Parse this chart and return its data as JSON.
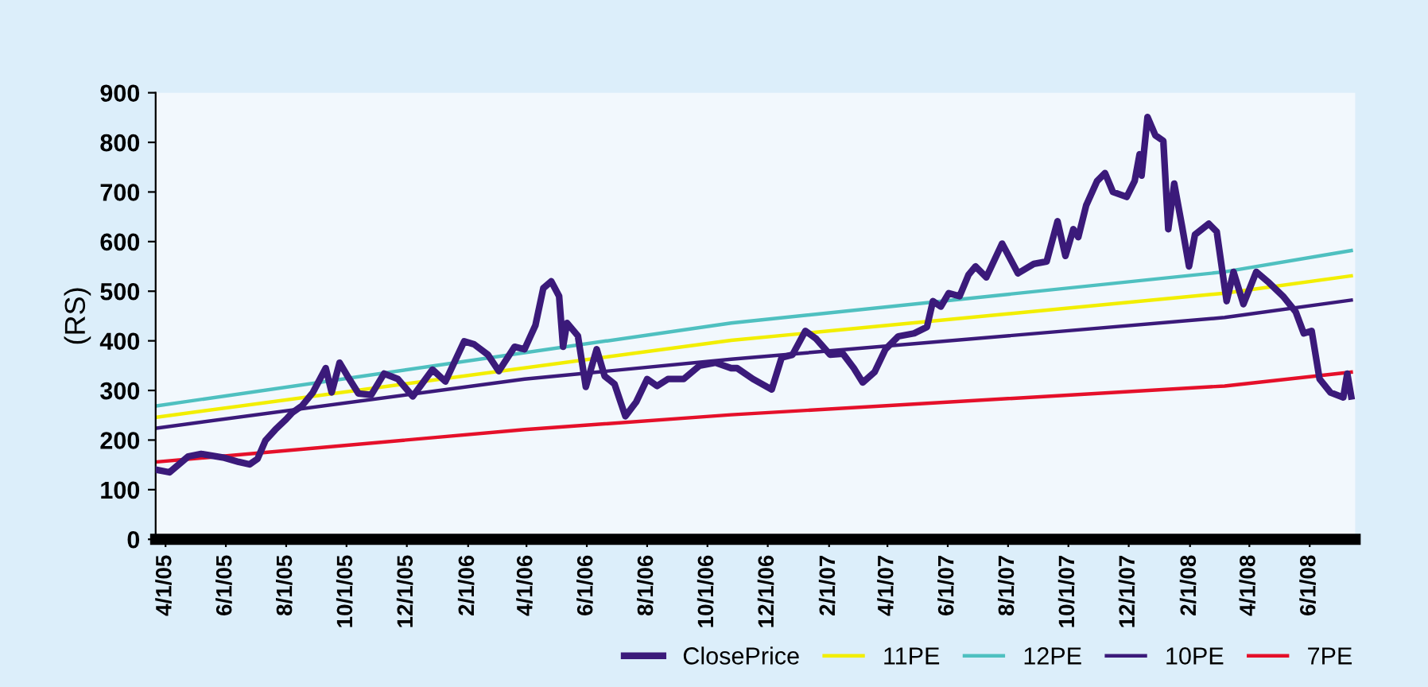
{
  "chart_data": {
    "type": "line",
    "ylabel": "(RS)",
    "xlim": [
      "2005-03-22",
      "2008-07-17"
    ],
    "ylim": [
      0,
      900
    ],
    "yticks": [
      0,
      100,
      200,
      300,
      400,
      500,
      600,
      700,
      800,
      900
    ],
    "xticks": [
      {
        "value": "2005-04-01",
        "label": "4/1/05"
      },
      {
        "value": "2005-06-01",
        "label": "6/1/05"
      },
      {
        "value": "2005-08-01",
        "label": "8/1/05"
      },
      {
        "value": "2005-10-01",
        "label": "10/1/05"
      },
      {
        "value": "2005-12-01",
        "label": "12/1/05"
      },
      {
        "value": "2006-02-01",
        "label": "2/1/06"
      },
      {
        "value": "2006-04-01",
        "label": "4/1/06"
      },
      {
        "value": "2006-06-01",
        "label": "6/1/06"
      },
      {
        "value": "2006-08-01",
        "label": "8/1/06"
      },
      {
        "value": "2006-10-01",
        "label": "10/1/06"
      },
      {
        "value": "2006-12-01",
        "label": "12/1/06"
      },
      {
        "value": "2007-02-01",
        "label": "2/1/07"
      },
      {
        "value": "2007-04-01",
        "label": "4/1/07"
      },
      {
        "value": "2007-06-01",
        "label": "6/1/07"
      },
      {
        "value": "2007-08-01",
        "label": "8/1/07"
      },
      {
        "value": "2007-10-01",
        "label": "10/1/07"
      },
      {
        "value": "2007-12-01",
        "label": "12/1/07"
      },
      {
        "value": "2008-02-01",
        "label": "2/1/08"
      },
      {
        "value": "2008-04-01",
        "label": "4/1/08"
      },
      {
        "value": "2008-06-01",
        "label": "6/1/08"
      }
    ],
    "grid": false,
    "legend": "bottom right",
    "marker": "none",
    "line_style": "solid",
    "series": [
      {
        "name": "ClosePrice",
        "color": "#3b1a7a",
        "x": [
          "2005-03-23",
          "2005-04-05",
          "2005-04-24",
          "2005-05-07",
          "2005-05-29",
          "2005-06-14",
          "2005-06-25",
          "2005-07-03",
          "2005-07-11",
          "2005-07-21",
          "2005-08-01",
          "2005-08-07",
          "2005-08-17",
          "2005-08-28",
          "2005-09-10",
          "2005-09-16",
          "2005-09-24",
          "2005-10-02",
          "2005-10-13",
          "2005-10-26",
          "2005-11-08",
          "2005-11-22",
          "2005-12-07",
          "2005-12-27",
          "2006-01-09",
          "2006-01-28",
          "2006-02-07",
          "2006-02-21",
          "2006-03-04",
          "2006-03-20",
          "2006-03-30",
          "2006-04-10",
          "2006-04-18",
          "2006-04-26",
          "2006-05-04",
          "2006-05-08",
          "2006-05-12",
          "2006-05-23",
          "2006-05-31",
          "2006-06-11",
          "2006-06-19",
          "2006-06-29",
          "2006-07-10",
          "2006-07-21",
          "2006-08-01",
          "2006-08-11",
          "2006-08-22",
          "2006-09-07",
          "2006-09-23",
          "2006-10-09",
          "2006-10-25",
          "2006-10-31",
          "2006-11-16",
          "2006-12-05",
          "2006-12-15",
          "2006-12-26",
          "2007-01-08",
          "2007-01-19",
          "2007-02-02",
          "2007-02-15",
          "2007-02-26",
          "2007-03-07",
          "2007-03-19",
          "2007-03-30",
          "2007-04-12",
          "2007-04-28",
          "2007-05-11",
          "2007-05-17",
          "2007-05-25",
          "2007-06-02",
          "2007-06-13",
          "2007-06-22",
          "2007-06-29",
          "2007-07-10",
          "2007-07-26",
          "2007-08-11",
          "2007-08-27",
          "2007-09-09",
          "2007-09-20",
          "2007-09-28",
          "2007-10-06",
          "2007-10-11",
          "2007-10-19",
          "2007-10-30",
          "2007-11-07",
          "2007-11-15",
          "2007-11-29",
          "2007-12-07",
          "2007-12-12",
          "2007-12-14",
          "2007-12-20",
          "2007-12-28",
          "2008-01-05",
          "2008-01-10",
          "2008-01-16",
          "2008-01-24",
          "2008-01-31",
          "2008-02-06",
          "2008-02-20",
          "2008-02-28",
          "2008-03-09",
          "2008-03-16",
          "2008-03-26",
          "2008-04-08",
          "2008-04-21",
          "2008-05-05",
          "2008-05-18",
          "2008-05-26",
          "2008-06-03",
          "2008-06-11",
          "2008-06-22",
          "2008-07-05",
          "2008-07-09",
          "2008-07-13"
        ],
        "values": [
          140,
          135,
          167,
          172,
          165,
          156,
          151,
          162,
          199,
          221,
          242,
          255,
          269,
          296,
          345,
          296,
          356,
          329,
          294,
          291,
          334,
          323,
          288,
          342,
          318,
          399,
          393,
          372,
          339,
          388,
          383,
          431,
          506,
          520,
          490,
          388,
          436,
          410,
          307,
          383,
          329,
          313,
          248,
          277,
          323,
          309,
          323,
          323,
          350,
          356,
          345,
          345,
          323,
          302,
          366,
          372,
          420,
          404,
          372,
          374,
          345,
          316,
          337,
          383,
          409,
          415,
          428,
          480,
          469,
          496,
          490,
          533,
          550,
          528,
          596,
          536,
          555,
          560,
          641,
          571,
          625,
          609,
          673,
          722,
          738,
          700,
          690,
          722,
          776,
          733,
          851,
          814,
          803,
          625,
          717,
          630,
          550,
          614,
          636,
          620,
          480,
          539,
          474,
          539,
          517,
          490,
          458,
          415,
          420,
          323,
          296,
          286,
          334,
          288
        ]
      },
      {
        "name": "11PE",
        "color": "#f2ee00",
        "x": [
          "2005-03-23",
          "2006-10-25",
          "2008-03-07",
          "2008-07-13"
        ],
        "values": [
          246,
          401,
          496,
          531
        ]
      },
      {
        "name": "12PE",
        "color": "#4fc0c0",
        "x": [
          "2005-03-23",
          "2006-10-25",
          "2008-03-07",
          "2008-07-13"
        ],
        "values": [
          269,
          436,
          539,
          582
        ]
      },
      {
        "name": "10PE",
        "color": "#3b1a7a",
        "x": [
          "2005-03-23",
          "2006-03-30",
          "2006-10-25",
          "2008-03-07",
          "2008-07-13"
        ],
        "values": [
          224,
          323,
          363,
          447,
          482
        ]
      },
      {
        "name": "7PE",
        "color": "#e5102a",
        "x": [
          "2005-03-23",
          "2006-03-30",
          "2006-10-25",
          "2008-03-07",
          "2008-07-13"
        ],
        "values": [
          156,
          221,
          251,
          309,
          337
        ]
      }
    ]
  }
}
